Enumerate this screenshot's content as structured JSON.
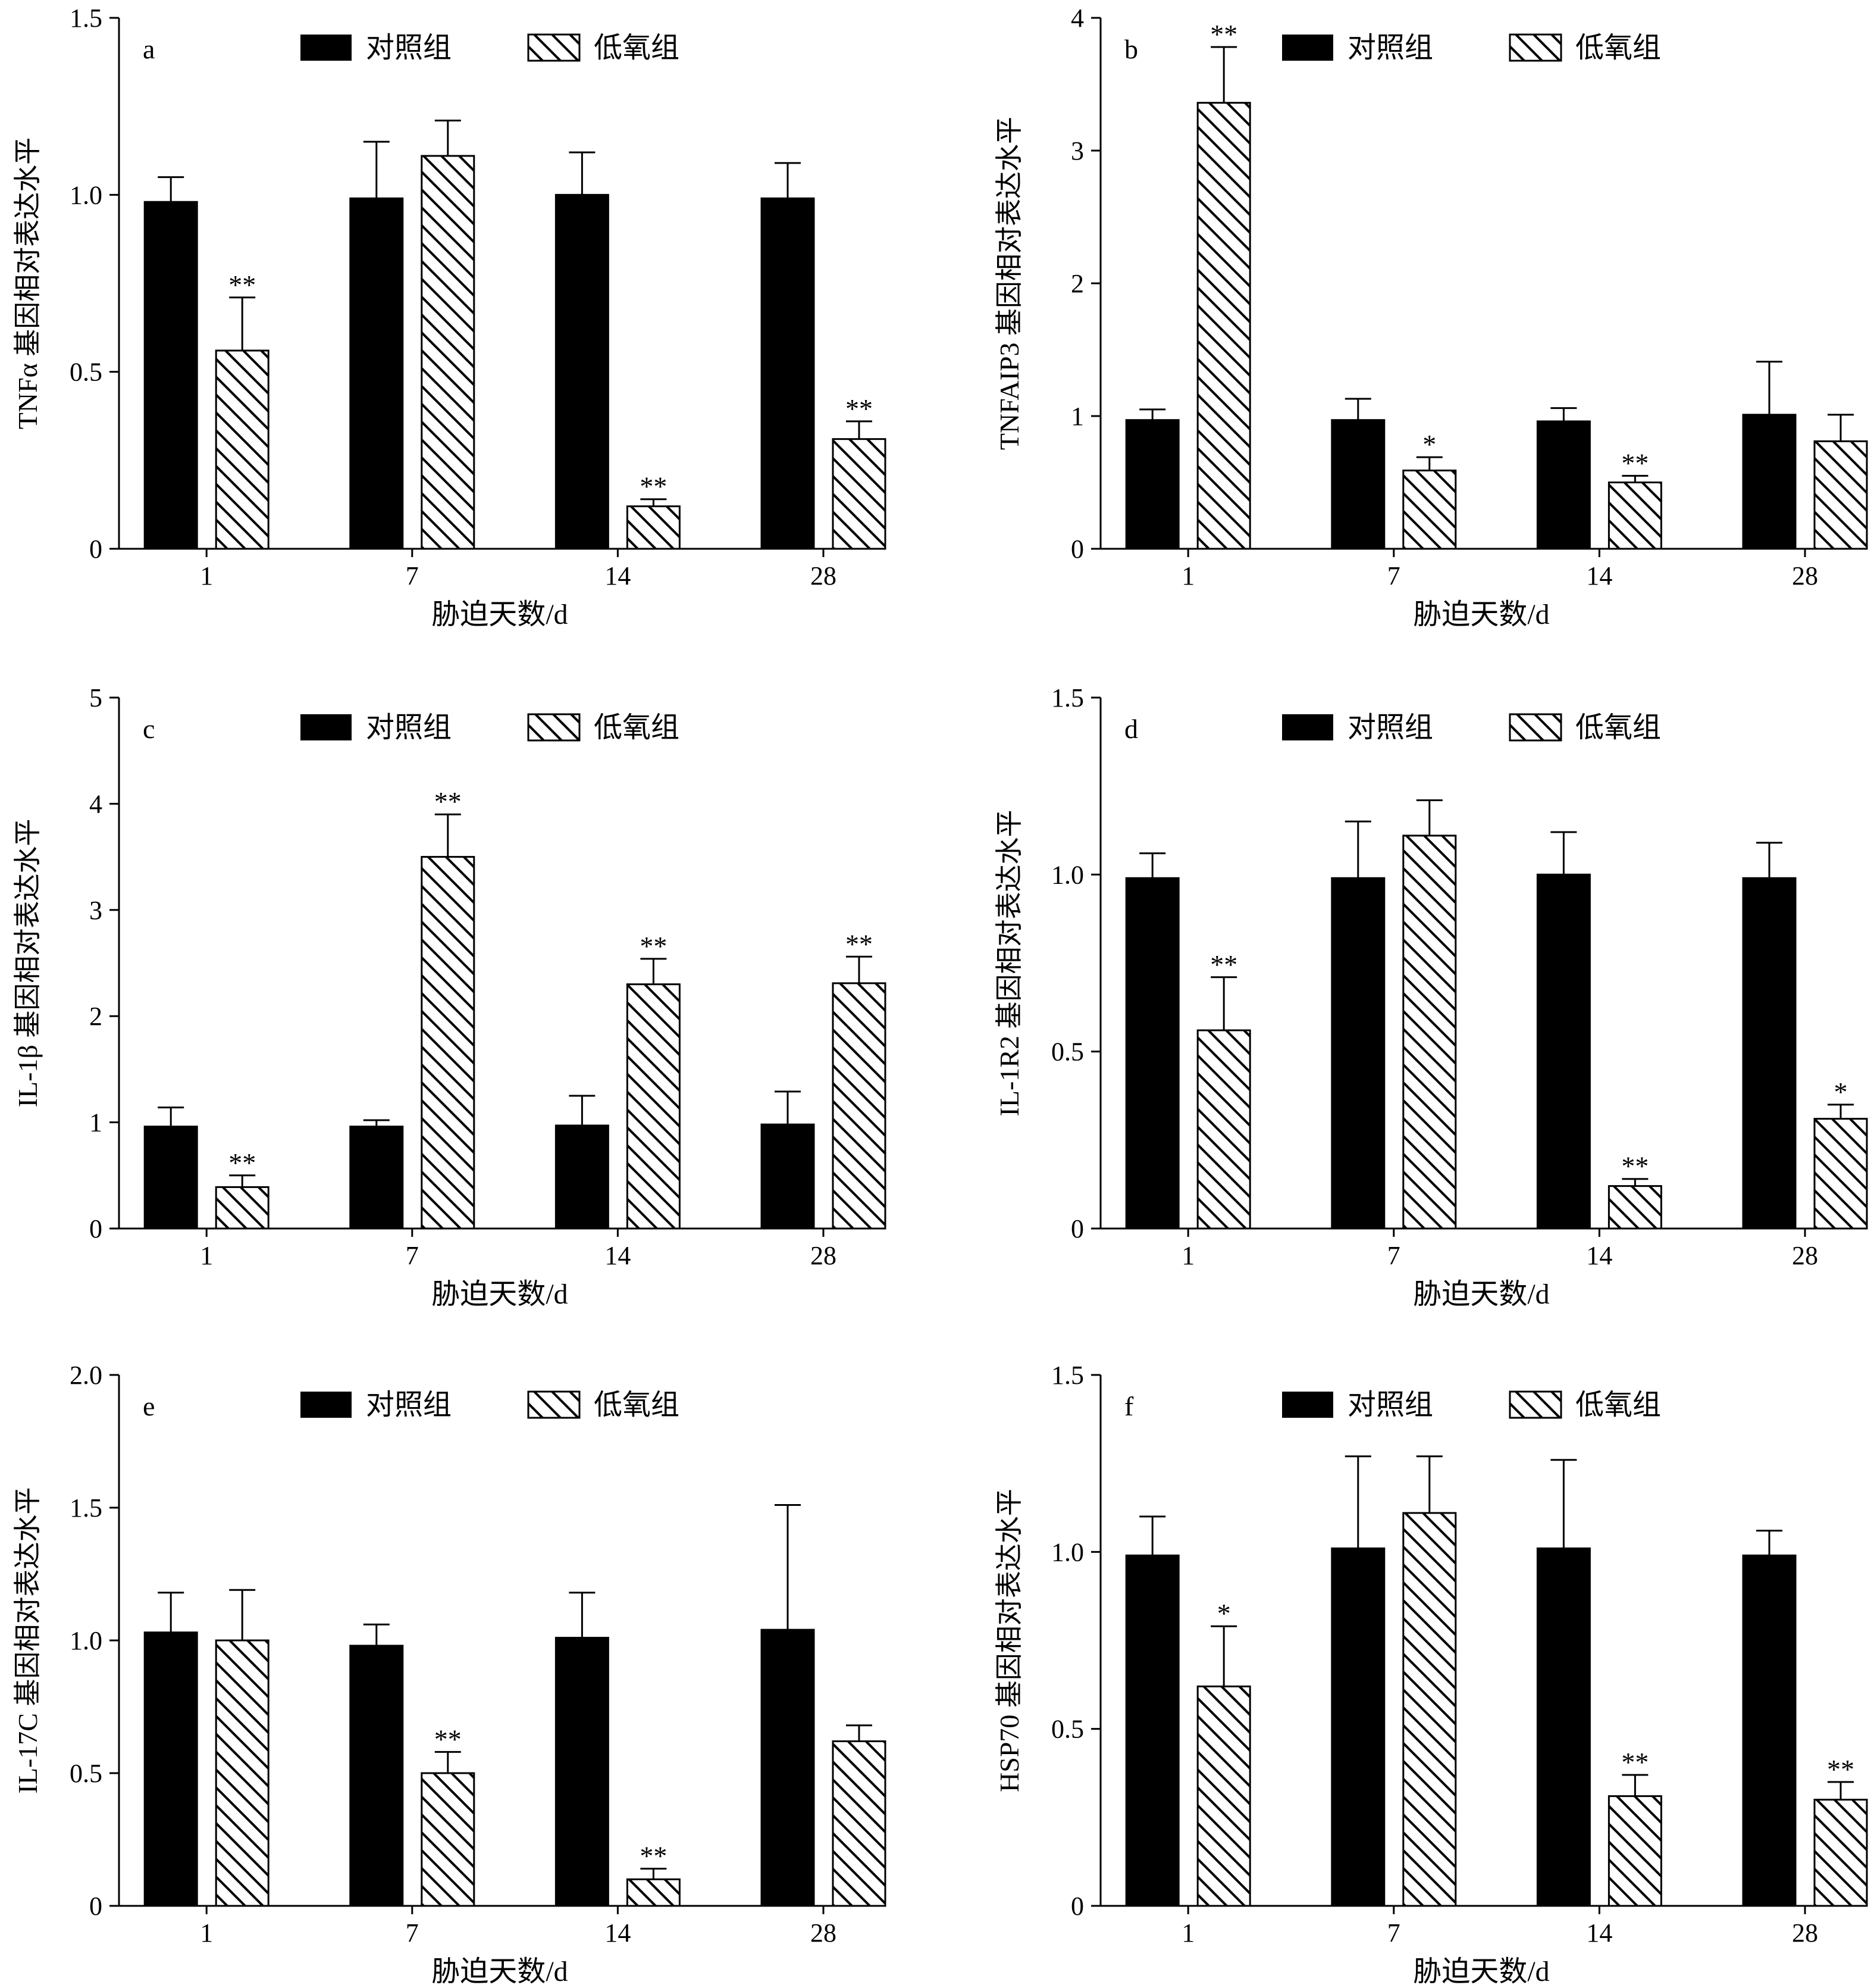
{
  "colors": {
    "control": "#000000",
    "hypoxia_fill": "#ffffff",
    "hypoxia_hatch": "#000000",
    "axis": "#000000"
  },
  "chart_data": [
    {
      "type": "bar",
      "panel": "a",
      "ylabel": "TNFα 基因相对表达水平",
      "xlabel": "胁迫天数/d",
      "categories": [
        "1",
        "7",
        "14",
        "28"
      ],
      "ylim": [
        0,
        1.5
      ],
      "yticks": [
        0,
        0.5,
        1.0,
        1.5
      ],
      "ytick_labels": [
        "0",
        "0.5",
        "1.0",
        "1.5"
      ],
      "legend_position": "top-center",
      "series": [
        {
          "name": "对照组",
          "style": "solid",
          "values": [
            0.98,
            0.99,
            1.0,
            0.99
          ],
          "errors": [
            0.07,
            0.16,
            0.12,
            0.1
          ],
          "sig": [
            "",
            "",
            "",
            ""
          ]
        },
        {
          "name": "低氧组",
          "style": "hatched",
          "values": [
            0.56,
            1.11,
            0.12,
            0.31
          ],
          "errors": [
            0.15,
            0.1,
            0.02,
            0.05
          ],
          "sig": [
            "**",
            "",
            "**",
            "**"
          ]
        }
      ]
    },
    {
      "type": "bar",
      "panel": "b",
      "ylabel": "TNFAIP3 基因相对表达水平",
      "xlabel": "胁迫天数/d",
      "categories": [
        "1",
        "7",
        "14",
        "28"
      ],
      "ylim": [
        0,
        4
      ],
      "yticks": [
        0,
        1,
        2,
        3,
        4
      ],
      "ytick_labels": [
        "0",
        "1",
        "2",
        "3",
        "4"
      ],
      "legend_position": "top-center",
      "series": [
        {
          "name": "对照组",
          "style": "solid",
          "values": [
            0.97,
            0.97,
            0.96,
            1.01
          ],
          "errors": [
            0.08,
            0.16,
            0.1,
            0.4
          ],
          "sig": [
            "",
            "",
            "",
            ""
          ]
        },
        {
          "name": "低氧组",
          "style": "hatched",
          "values": [
            3.36,
            0.59,
            0.5,
            0.81
          ],
          "errors": [
            0.42,
            0.1,
            0.05,
            0.2
          ],
          "sig": [
            "**",
            "*",
            "**",
            ""
          ]
        }
      ]
    },
    {
      "type": "bar",
      "panel": "c",
      "ylabel": "IL-1β 基因相对表达水平",
      "xlabel": "胁迫天数/d",
      "categories": [
        "1",
        "7",
        "14",
        "28"
      ],
      "ylim": [
        0,
        5
      ],
      "yticks": [
        0,
        1,
        2,
        3,
        4,
        5
      ],
      "ytick_labels": [
        "0",
        "1",
        "2",
        "3",
        "4",
        "5"
      ],
      "legend_position": "top-center",
      "series": [
        {
          "name": "对照组",
          "style": "solid",
          "values": [
            0.96,
            0.96,
            0.97,
            0.98
          ],
          "errors": [
            0.18,
            0.06,
            0.28,
            0.31
          ],
          "sig": [
            "",
            "",
            "",
            ""
          ]
        },
        {
          "name": "低氧组",
          "style": "hatched",
          "values": [
            0.39,
            3.5,
            2.3,
            2.31
          ],
          "errors": [
            0.11,
            0.4,
            0.24,
            0.25
          ],
          "sig": [
            "**",
            "**",
            "**",
            "**"
          ]
        }
      ]
    },
    {
      "type": "bar",
      "panel": "d",
      "ylabel": "IL-1R2 基因相对表达水平",
      "xlabel": "胁迫天数/d",
      "categories": [
        "1",
        "7",
        "14",
        "28"
      ],
      "ylim": [
        0,
        1.5
      ],
      "yticks": [
        0,
        0.5,
        1.0,
        1.5
      ],
      "ytick_labels": [
        "0",
        "0.5",
        "1.0",
        "1.5"
      ],
      "legend_position": "top-center",
      "series": [
        {
          "name": "对照组",
          "style": "solid",
          "values": [
            0.99,
            0.99,
            1.0,
            0.99
          ],
          "errors": [
            0.07,
            0.16,
            0.12,
            0.1
          ],
          "sig": [
            "",
            "",
            "",
            ""
          ]
        },
        {
          "name": "低氧组",
          "style": "hatched",
          "values": [
            0.56,
            1.11,
            0.12,
            0.31
          ],
          "errors": [
            0.15,
            0.1,
            0.02,
            0.04
          ],
          "sig": [
            "**",
            "",
            "**",
            "*"
          ]
        }
      ]
    },
    {
      "type": "bar",
      "panel": "e",
      "ylabel": "IL-17C 基因相对表达水平",
      "xlabel": "胁迫天数/d",
      "categories": [
        "1",
        "7",
        "14",
        "28"
      ],
      "ylim": [
        0,
        2.0
      ],
      "yticks": [
        0,
        0.5,
        1.0,
        1.5,
        2.0
      ],
      "ytick_labels": [
        "0",
        "0.5",
        "1.0",
        "1.5",
        "2.0"
      ],
      "legend_position": "top-center",
      "series": [
        {
          "name": "对照组",
          "style": "solid",
          "values": [
            1.03,
            0.98,
            1.01,
            1.04
          ],
          "errors": [
            0.15,
            0.08,
            0.17,
            0.47
          ],
          "sig": [
            "",
            "",
            "",
            ""
          ]
        },
        {
          "name": "低氧组",
          "style": "hatched",
          "values": [
            1.0,
            0.5,
            0.1,
            0.62
          ],
          "errors": [
            0.19,
            0.08,
            0.04,
            0.06
          ],
          "sig": [
            "",
            "**",
            "**",
            ""
          ]
        }
      ]
    },
    {
      "type": "bar",
      "panel": "f",
      "ylabel": "HSP70 基因相对表达水平",
      "xlabel": "胁迫天数/d",
      "categories": [
        "1",
        "7",
        "14",
        "28"
      ],
      "ylim": [
        0,
        1.5
      ],
      "yticks": [
        0,
        0.5,
        1.0,
        1.5
      ],
      "ytick_labels": [
        "0",
        "0.5",
        "1.0",
        "1.5"
      ],
      "legend_position": "top-center",
      "series": [
        {
          "name": "对照组",
          "style": "solid",
          "values": [
            0.99,
            1.01,
            1.01,
            0.99
          ],
          "errors": [
            0.11,
            0.26,
            0.25,
            0.07
          ],
          "sig": [
            "",
            "",
            "",
            ""
          ]
        },
        {
          "name": "低氧组",
          "style": "hatched",
          "values": [
            0.62,
            1.11,
            0.31,
            0.3
          ],
          "errors": [
            0.17,
            0.16,
            0.06,
            0.05
          ],
          "sig": [
            "*",
            "",
            "**",
            "**"
          ]
        }
      ]
    }
  ]
}
